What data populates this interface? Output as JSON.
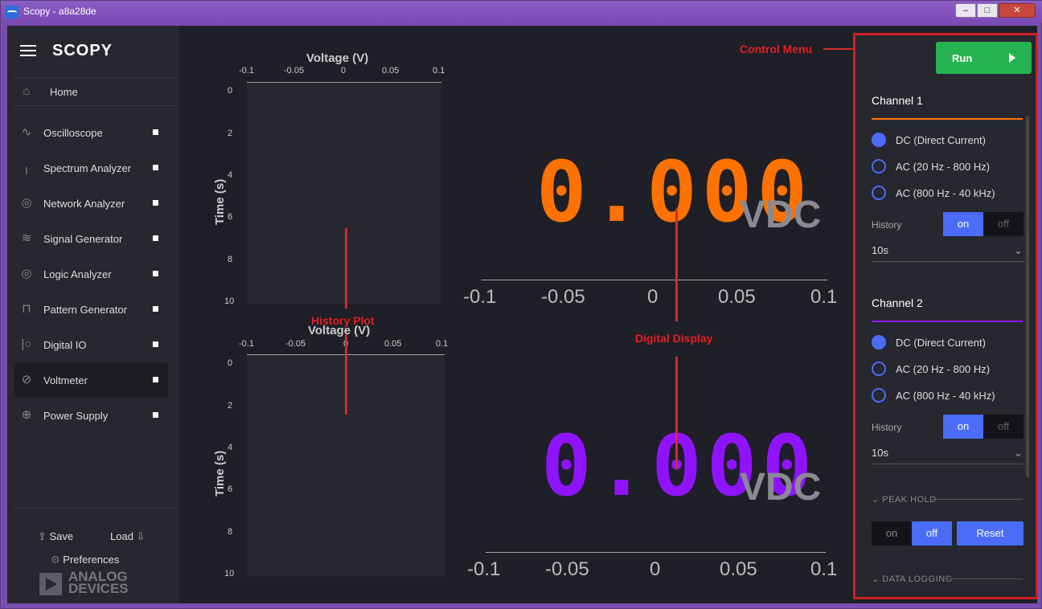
{
  "window": {
    "title": "Scopy - a8a28de",
    "min_label": "–",
    "max_label": "□",
    "close_label": "✕"
  },
  "sidebar": {
    "logo": "SCOPY",
    "home": "Home",
    "items": [
      {
        "label": "Oscilloscope",
        "icon": "oscilloscope-icon"
      },
      {
        "label": "Spectrum Analyzer",
        "icon": "spectrum-icon"
      },
      {
        "label": "Network Analyzer",
        "icon": "network-icon"
      },
      {
        "label": "Signal Generator",
        "icon": "signal-icon"
      },
      {
        "label": "Logic Analyzer",
        "icon": "logic-icon"
      },
      {
        "label": "Pattern Generator",
        "icon": "pattern-icon"
      },
      {
        "label": "Digital IO",
        "icon": "digital-io-icon"
      },
      {
        "label": "Voltmeter",
        "icon": "voltmeter-icon",
        "active": true
      },
      {
        "label": "Power Supply",
        "icon": "power-icon"
      }
    ],
    "save": "Save",
    "load": "Load",
    "preferences": "Preferences",
    "brand_line1": "ANALOG",
    "brand_line2": "DEVICES"
  },
  "history_plot": {
    "x_title": "Voltage (V)",
    "y_title": "Time (s)",
    "x_ticks": [
      "-0.1",
      "-0.05",
      "0",
      "0.05",
      "0.1"
    ],
    "y_ticks": [
      "0",
      "2",
      "4",
      "6",
      "8",
      "10"
    ]
  },
  "display": {
    "ch1_value": "0.000",
    "ch2_value": "0.000",
    "unit": "VDC",
    "scale_ticks": [
      "-0.1",
      "-0.05",
      "0",
      "0.05",
      "0.1"
    ],
    "ch1_color": "#ff7200",
    "ch2_color": "#9013fe"
  },
  "annotations": {
    "control_menu": "Control Menu",
    "history_plot": "History Plot",
    "digital_display": "Digital Display"
  },
  "control": {
    "run": "Run",
    "ch1": {
      "title": "Channel 1",
      "modes": [
        "DC (Direct Current)",
        "AC (20 Hz - 800 Hz)",
        "AC (800 Hz - 40 kHz)"
      ],
      "history_label": "History",
      "on": "on",
      "off": "off",
      "history_value": "10s"
    },
    "ch2": {
      "title": "Channel 2",
      "modes": [
        "DC (Direct Current)",
        "AC (20 Hz - 800 Hz)",
        "AC (800 Hz - 40 kHz)"
      ],
      "history_label": "History",
      "on": "on",
      "off": "off",
      "history_value": "10s"
    },
    "peak_hold": "PEAK HOLD",
    "peak_on": "on",
    "peak_off": "off",
    "reset": "Reset",
    "data_logging": "DATA LOGGING"
  }
}
